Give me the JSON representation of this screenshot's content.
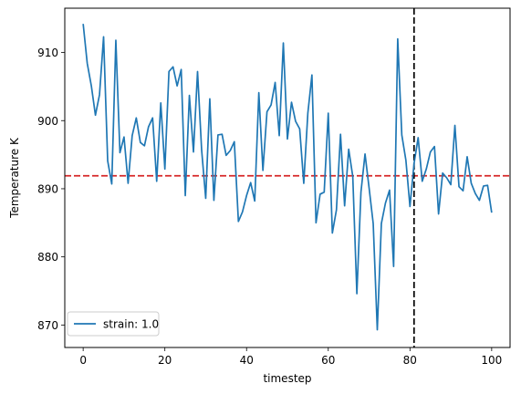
{
  "chart_data": {
    "type": "line",
    "xlabel": "timestep",
    "ylabel": "Temperature K",
    "xlim": [
      -4.5,
      104.5
    ],
    "ylim": [
      866.7,
      916.5
    ],
    "xticks": [
      0,
      20,
      40,
      60,
      80,
      100
    ],
    "yticks": [
      870,
      880,
      890,
      900,
      910
    ],
    "grid": false,
    "legend_position": "lower-left",
    "series": [
      {
        "name": "strain: 1.0",
        "color": "#1f77b4",
        "x": [
          0,
          1,
          2,
          3,
          4,
          5,
          6,
          7,
          8,
          9,
          10,
          11,
          12,
          13,
          14,
          15,
          16,
          17,
          18,
          19,
          20,
          21,
          22,
          23,
          24,
          25,
          26,
          27,
          28,
          29,
          30,
          31,
          32,
          33,
          34,
          35,
          36,
          37,
          38,
          39,
          40,
          41,
          42,
          43,
          44,
          45,
          46,
          47,
          48,
          49,
          50,
          51,
          52,
          53,
          54,
          55,
          56,
          57,
          58,
          59,
          60,
          61,
          62,
          63,
          64,
          65,
          66,
          67,
          68,
          69,
          70,
          71,
          72,
          73,
          74,
          75,
          76,
          77,
          78,
          79,
          80,
          81,
          82,
          83,
          84,
          85,
          86,
          87,
          88,
          89,
          90,
          91,
          92,
          93,
          94,
          95,
          96,
          97,
          98,
          99,
          100
        ],
        "values": [
          914.2,
          908.4,
          905.1,
          900.8,
          903.8,
          912.3,
          894.1,
          890.7,
          911.8,
          895.3,
          897.6,
          890.8,
          897.8,
          900.4,
          896.8,
          896.3,
          899.1,
          900.4,
          891.1,
          902.6,
          892.9,
          907.2,
          907.9,
          905.1,
          907.5,
          889.0,
          903.7,
          895.4,
          907.2,
          895.7,
          888.6,
          903.2,
          888.3,
          897.9,
          898.0,
          894.9,
          895.6,
          896.9,
          885.2,
          886.6,
          889.0,
          890.9,
          888.2,
          904.1,
          892.7,
          901.3,
          902.3,
          905.6,
          897.8,
          911.4,
          897.3,
          902.7,
          899.9,
          898.8,
          890.8,
          901.1,
          906.7,
          885.0,
          889.2,
          889.5,
          901.1,
          883.5,
          886.9,
          898.0,
          887.5,
          895.8,
          891.8,
          874.6,
          889.5,
          895.1,
          890.1,
          884.9,
          869.3,
          884.9,
          887.9,
          889.8,
          878.6,
          912.0,
          897.9,
          894.2,
          887.4,
          893.7,
          897.5,
          891.1,
          892.9,
          895.4,
          896.2,
          886.3,
          892.3,
          891.6,
          890.6,
          899.3,
          890.3,
          889.7,
          894.7,
          890.8,
          889.3,
          888.3,
          890.4,
          890.5,
          886.5
        ]
      }
    ],
    "reference_lines": [
      {
        "orientation": "horizontal",
        "value": 891.9,
        "color": "#d62728",
        "style": "dashed"
      },
      {
        "orientation": "vertical",
        "value": 81,
        "color": "#000000",
        "style": "dashed"
      }
    ]
  }
}
